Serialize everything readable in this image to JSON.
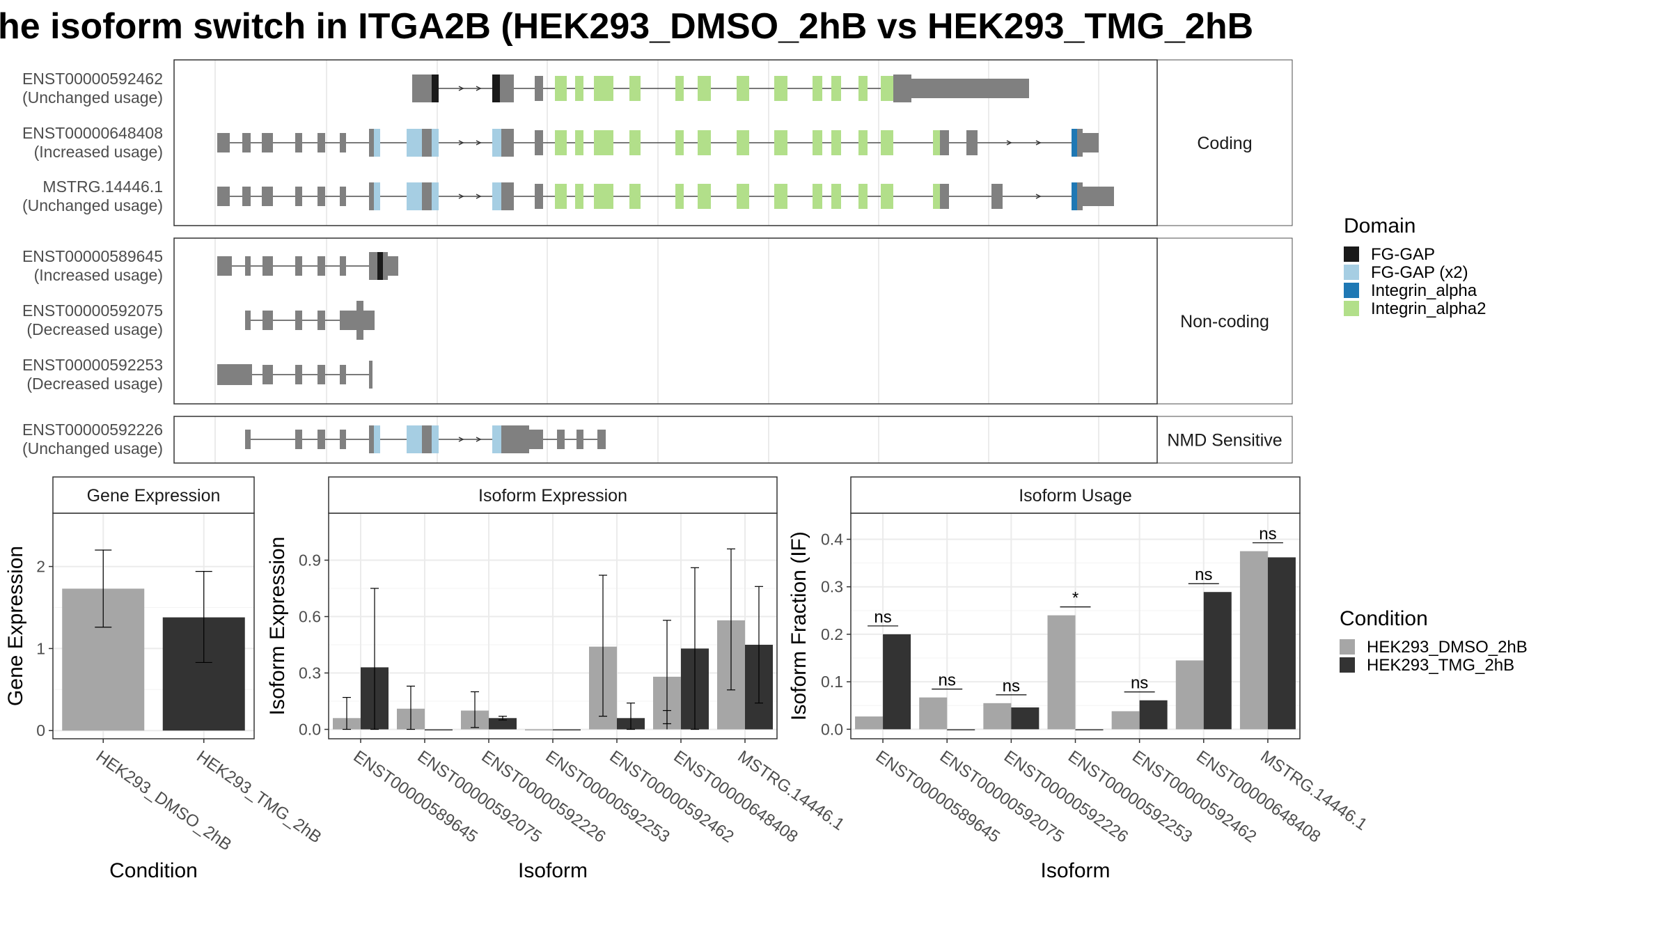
{
  "title": "he isoform switch in ITGA2B (HEK293_DMSO_2hB vs HEK293_TMG_2hB",
  "colors": {
    "fg_gap": "#1a1a1a",
    "fg_gap_x2": "#a6cee3",
    "integrin_alpha": "#1f78b4",
    "integrin_alpha2": "#b2df8a",
    "exon": "#808080",
    "dmso": "#a6a6a6",
    "tmg": "#333333"
  },
  "structure": {
    "groups": [
      {
        "label": "Coding",
        "tracks": [
          {
            "id": "ENST00000592462",
            "usage": "(Unchanged usage)"
          },
          {
            "id": "ENST00000648408",
            "usage": "(Increased usage)"
          },
          {
            "id": "MSTRG.14446.1",
            "usage": "(Unchanged usage)"
          }
        ]
      },
      {
        "label": "Non-coding",
        "tracks": [
          {
            "id": "ENST00000589645",
            "usage": "(Increased usage)"
          },
          {
            "id": "ENST00000592075",
            "usage": "(Decreased usage)"
          },
          {
            "id": "ENST00000592253",
            "usage": "(Decreased usage)"
          }
        ]
      },
      {
        "label": "NMD Sensitive",
        "tracks": [
          {
            "id": "ENST00000592226",
            "usage": "(Unchanged usage)"
          }
        ]
      }
    ]
  },
  "domain_legend": {
    "title": "Domain",
    "items": [
      {
        "label": "FG-GAP",
        "color": "#1a1a1a"
      },
      {
        "label": "FG-GAP (x2)",
        "color": "#a6cee3"
      },
      {
        "label": "Integrin_alpha",
        "color": "#1f78b4"
      },
      {
        "label": "Integrin_alpha2",
        "color": "#b2df8a"
      }
    ]
  },
  "condition_legend": {
    "title": "Condition",
    "items": [
      {
        "label": "HEK293_DMSO_2hB",
        "color": "#a6a6a6"
      },
      {
        "label": "HEK293_TMG_2hB",
        "color": "#333333"
      }
    ]
  },
  "chart_data": [
    {
      "type": "bar",
      "title": "Gene Expression",
      "xlabel": "Condition",
      "ylabel": "Gene Expression",
      "categories": [
        "HEK293_DMSO_2hB",
        "HEK293_TMG_2hB"
      ],
      "values": [
        1.73,
        1.38
      ],
      "error_low": [
        1.26,
        0.83
      ],
      "error_high": [
        2.2,
        1.94
      ],
      "ylim": [
        -0.1,
        2.65
      ],
      "yticks": [
        0,
        1,
        2
      ]
    },
    {
      "type": "bar",
      "title": "Isoform Expression",
      "xlabel": "Isoform",
      "ylabel": "Isoform Expression",
      "categories": [
        "ENST00000589645",
        "ENST00000592075",
        "ENST00000592226",
        "ENST00000592253",
        "ENST00000592462",
        "ENST00000648408",
        "MSTRG.14446.1"
      ],
      "series": [
        {
          "name": "HEK293_DMSO_2hB",
          "values": [
            0.06,
            0.11,
            0.1,
            0.0,
            0.44,
            0.06,
            0.58
          ],
          "error_low": [
            0.0,
            0.0,
            0.01,
            0.0,
            0.07,
            0.03,
            0.21
          ],
          "error_high": [
            0.17,
            0.23,
            0.2,
            0.0,
            0.82,
            0.1,
            0.96
          ]
        },
        {
          "name": "HEK293_TMG_2hB",
          "values": [
            0.33,
            0.0,
            0.06,
            0.0,
            0.06,
            0.43,
            0.45
          ],
          "error_low": [
            0.0,
            0.0,
            0.05,
            0.0,
            0.0,
            0.0,
            0.14
          ],
          "error_high": [
            0.75,
            0.0,
            0.07,
            0.0,
            0.14,
            0.86,
            0.76
          ]
        }
      ],
      "overlaps": [
        [
          4,
          5
        ],
        [
          5,
          6
        ]
      ],
      "note_dmso_extra": {
        "index": 5,
        "value": 0.28,
        "error_low": 0.0,
        "error_high": 0.58
      },
      "ylim": [
        -0.05,
        1.15
      ],
      "yticks": [
        0.0,
        0.3,
        0.6,
        0.9
      ]
    },
    {
      "type": "bar",
      "title": "Isoform Usage",
      "xlabel": "Isoform",
      "ylabel": "Isoform Fraction (IF)",
      "categories": [
        "ENST00000589645",
        "ENST00000592075",
        "ENST00000592226",
        "ENST00000592253",
        "ENST00000592462",
        "ENST00000648408",
        "MSTRG.14446.1"
      ],
      "series": [
        {
          "name": "HEK293_DMSO_2hB",
          "values": [
            0.027,
            0.067,
            0.055,
            0.24,
            0.038,
            0.145,
            0.375
          ]
        },
        {
          "name": "HEK293_TMG_2hB",
          "values": [
            0.2,
            0.0,
            0.046,
            0.0,
            0.061,
            0.289,
            0.362
          ]
        }
      ],
      "significance": [
        "ns",
        "ns",
        "ns",
        "*",
        "ns",
        "ns",
        "ns"
      ],
      "ylim": [
        -0.02,
        0.455
      ],
      "yticks": [
        0.0,
        0.1,
        0.2,
        0.3,
        0.4
      ]
    }
  ]
}
